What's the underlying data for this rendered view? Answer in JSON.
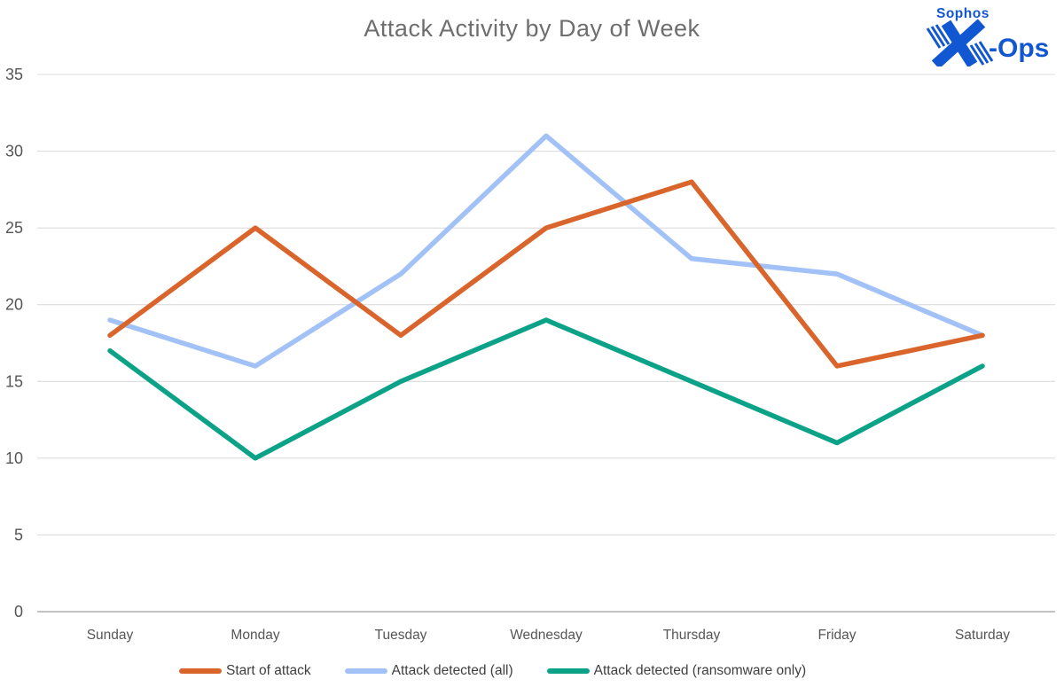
{
  "page": {
    "background": "#ffffff"
  },
  "header": {
    "logo": {
      "brand": "Sophos",
      "ops": "-Ops",
      "color": "#1257d2"
    }
  },
  "chart_data": {
    "type": "line",
    "title": "Attack Activity by Day of Week",
    "xlabel": "",
    "ylabel": "",
    "categories": [
      "Sunday",
      "Monday",
      "Tuesday",
      "Wednesday",
      "Thursday",
      "Friday",
      "Saturday"
    ],
    "yticks": [
      0,
      5,
      10,
      15,
      20,
      25,
      30,
      35
    ],
    "ylim": [
      0,
      35
    ],
    "grid": true,
    "legend_position": "bottom",
    "series": [
      {
        "name": "Start of attack",
        "color": "#d9652c",
        "values": [
          18,
          25,
          18,
          25,
          28,
          16,
          18
        ]
      },
      {
        "name": "Attack detected (all)",
        "color": "#a2c1f7",
        "values": [
          19,
          16,
          22,
          31,
          23,
          22,
          18
        ]
      },
      {
        "name": "Attack detected (ransomware only)",
        "color": "#0ca287",
        "values": [
          17,
          10,
          15,
          19,
          15,
          11,
          16
        ]
      }
    ],
    "colors": {
      "title": "#6e6e6e",
      "tick_labels": "#565656",
      "gridline": "#dcdcdc",
      "axis_line": "#adadad",
      "legend_text": "#3f3f3f"
    }
  }
}
